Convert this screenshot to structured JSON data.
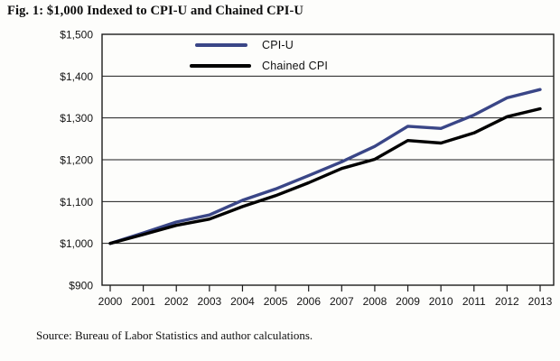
{
  "title": "Fig. 1: $1,000 Indexed to CPI-U and Chained CPI-U",
  "source": "Source: Bureau of Labor Statistics and author calculations.",
  "colors": {
    "cpi_u_line": "#3a4687",
    "chained_cpi_line": "#000000",
    "axis": "#1c1c1c",
    "background": "#fdfdfb"
  },
  "chart_data": {
    "type": "line",
    "title": "Fig. 1: $1,000 Indexed to CPI-U and Chained CPI-U",
    "x": [
      "2000",
      "2001",
      "2002",
      "2003",
      "2004",
      "2005",
      "2006",
      "2007",
      "2008",
      "2009",
      "2010",
      "2011",
      "2012",
      "2013"
    ],
    "series": [
      {
        "name": "CPI-U",
        "color": "#3a4687",
        "values": [
          1000,
          1025,
          1051,
          1068,
          1103,
          1130,
          1162,
          1195,
          1232,
          1280,
          1275,
          1307,
          1348,
          1368
        ]
      },
      {
        "name": "Chained CPI",
        "color": "#000000",
        "values": [
          1000,
          1021,
          1043,
          1058,
          1088,
          1114,
          1145,
          1179,
          1201,
          1246,
          1240,
          1264,
          1303,
          1322
        ]
      }
    ],
    "ylim": [
      900,
      1500
    ],
    "y_ticks": [
      {
        "value": 900,
        "label": "$900"
      },
      {
        "value": 1000,
        "label": "$1,000"
      },
      {
        "value": 1100,
        "label": "$1,100"
      },
      {
        "value": 1200,
        "label": "$1,200"
      },
      {
        "value": 1300,
        "label": "$1,300"
      },
      {
        "value": 1400,
        "label": "$1,400"
      },
      {
        "value": 1500,
        "label": "$1,500"
      }
    ],
    "grid": "horizontal",
    "legend_position": "inside-top-center",
    "xlabel": "",
    "ylabel": ""
  }
}
